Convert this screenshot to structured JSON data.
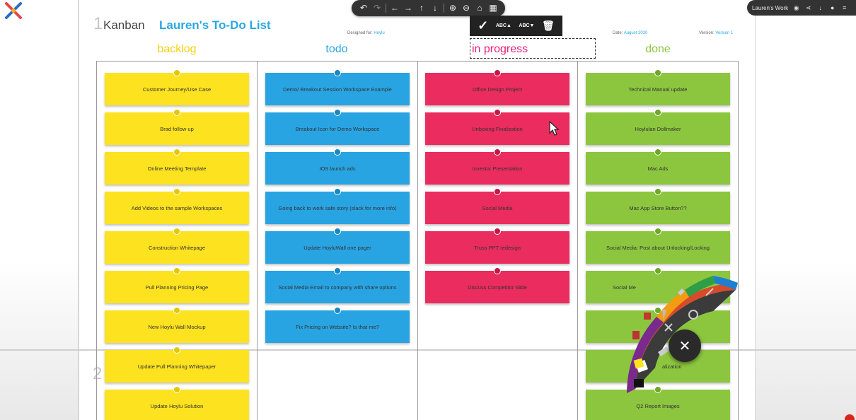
{
  "app": {
    "accent": "#2aa8e0",
    "workspace_name": "Lauren's Work"
  },
  "toolbar": {
    "icons": [
      "undo-icon",
      "redo-icon",
      "arrow-left-icon",
      "arrow-right-icon",
      "arrow-up-icon",
      "arrow-down-icon",
      "zoom-in-icon",
      "zoom-out-icon",
      "home-icon",
      "grid-icon"
    ]
  },
  "edit_bar": {
    "font_up_label": "ABC▲",
    "font_down_label": "ABC▼"
  },
  "header": {
    "panel_1": "1",
    "panel_2": "2",
    "board_type": "Kanban",
    "list_title": "Lauren's To-Do List",
    "designed_for_label": "Designed for:",
    "designed_for_value": "Hoylu",
    "date_label": "Date:",
    "date_value": "August 2020",
    "version_label": "Version:",
    "version_value": "Version 1"
  },
  "columns": [
    {
      "title": "backlog",
      "color": "#fde21f",
      "notes": [
        "Customer Journey/Use Case",
        "Brad follow up",
        "Online Meeting Template",
        "Add Videos to the sample Workspaces",
        "Construction Whitepage",
        "Pull Planning Pricing Page",
        "New Hoylu Wall Mockup",
        "Update Pull Planning Whitepaper",
        "Update Hoylu Solution"
      ]
    },
    {
      "title": "todo",
      "color": "#29a4e3",
      "notes": [
        "Demo/ Breakout Session Workspace Example",
        "Breakout Icon for Demo Workspace",
        "IOS launch ads",
        "Going back to work safe story (slack for more info)",
        "Update HoyluWall one pager",
        "Social Media Email to company with share options",
        "Fix Pricing on Website? Is that me?"
      ]
    },
    {
      "title": "in progress",
      "color": "#ea2c5f",
      "notes": [
        "Office Design Project",
        "Unboxing Finalization",
        "Investor Presentation",
        "Social Media",
        "Truss PPT redesign",
        "Discuss Competitor Slide"
      ]
    },
    {
      "title": "done",
      "color": "#8cc63f",
      "notes": [
        "Technical Manual update",
        "Hoylulan Dollmaker",
        "Mac Ads",
        "Mac App Store Button??",
        "Social Media: Post about Unlocking/Locking",
        "Social Me",
        "",
        "alization",
        "Q2 Report Images"
      ]
    }
  ],
  "palette_wheel": {
    "icons": [
      "flask-icon",
      "pen-icon",
      "eraser-icon",
      "lasso-icon",
      "expand-icon",
      "magnifier-icon",
      "sticky-note-icon",
      "close-icon"
    ]
  }
}
